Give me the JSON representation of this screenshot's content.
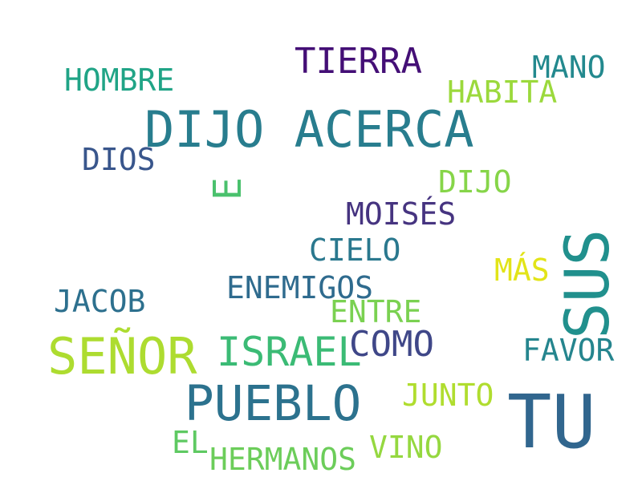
{
  "words": [
    {
      "text": "DIJO ACERCA",
      "color": "#287d8e"
    },
    {
      "text": "TU",
      "color": "#31668e"
    },
    {
      "text": "SUS",
      "color": "#21908d"
    },
    {
      "text": "SEÑOR",
      "color": "#addc30"
    },
    {
      "text": "PUEBLO",
      "color": "#2c728e"
    },
    {
      "text": "ISRAEL",
      "color": "#3bbb75"
    },
    {
      "text": "TIERRA",
      "color": "#440f76"
    },
    {
      "text": "COMO",
      "color": "#3f4788"
    },
    {
      "text": "HOMBRE",
      "color": "#20a486"
    },
    {
      "text": "MANO",
      "color": "#23898e"
    },
    {
      "text": "HABITA",
      "color": "#9bd93c"
    },
    {
      "text": "DIOS",
      "color": "#39568c"
    },
    {
      "text": "E",
      "color": "#4ac16d"
    },
    {
      "text": "DIJO",
      "color": "#86d549"
    },
    {
      "text": "MOISÉS",
      "color": "#463480"
    },
    {
      "text": "CIELO",
      "color": "#2a788e"
    },
    {
      "text": "MÁS",
      "color": "#e2e418"
    },
    {
      "text": "JACOB",
      "color": "#2d708e"
    },
    {
      "text": "ENEMIGOS",
      "color": "#2f6b8e"
    },
    {
      "text": "ENTRE",
      "color": "#7ad151"
    },
    {
      "text": "FAVOR",
      "color": "#25858e"
    },
    {
      "text": "JUNTO",
      "color": "#b0dd2f"
    },
    {
      "text": "EL",
      "color": "#5ec962"
    },
    {
      "text": "HERMANOS",
      "color": "#6ccd5a"
    },
    {
      "text": "VINO",
      "color": "#95d840"
    }
  ]
}
